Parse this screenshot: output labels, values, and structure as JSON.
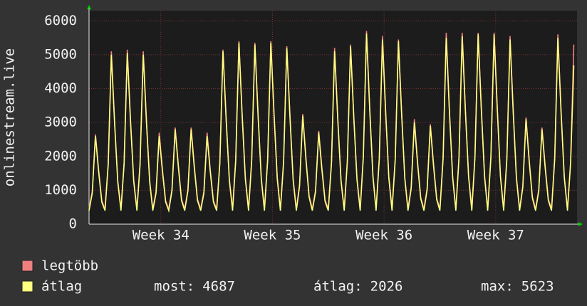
{
  "chart_data": {
    "type": "line",
    "y_label": "onlinestream.live",
    "xlim": [
      0,
      30.6
    ],
    "xticks": [
      {
        "value": 4.5,
        "label": "Week 34"
      },
      {
        "value": 11.5,
        "label": "Week 35"
      },
      {
        "value": 18.5,
        "label": "Week 36"
      },
      {
        "value": 25.5,
        "label": "Week 37"
      }
    ],
    "ylim": [
      0,
      6300
    ],
    "yticks": [
      0,
      1000,
      2000,
      3000,
      4000,
      5000,
      6000
    ],
    "grid": true,
    "x": [
      0,
      0.2,
      0.4,
      0.6,
      0.8,
      1,
      1.2,
      1.4,
      1.6,
      1.8,
      2,
      2.2,
      2.4,
      2.6,
      2.8,
      3,
      3.2,
      3.4,
      3.6,
      3.8,
      4,
      4.2,
      4.4,
      4.6,
      4.8,
      5,
      5.2,
      5.4,
      5.6,
      5.8,
      6,
      6.2,
      6.4,
      6.6,
      6.8,
      7,
      7.2,
      7.4,
      7.6,
      7.8,
      8,
      8.2,
      8.4,
      8.6,
      8.8,
      9,
      9.2,
      9.4,
      9.6,
      9.8,
      10,
      10.2,
      10.4,
      10.6,
      10.8,
      11,
      11.2,
      11.4,
      11.6,
      11.8,
      12,
      12.2,
      12.4,
      12.6,
      12.8,
      13,
      13.2,
      13.4,
      13.6,
      13.8,
      14,
      14.2,
      14.4,
      14.6,
      14.8,
      15,
      15.2,
      15.4,
      15.6,
      15.8,
      16,
      16.2,
      16.4,
      16.6,
      16.8,
      17,
      17.2,
      17.4,
      17.6,
      17.8,
      18,
      18.2,
      18.4,
      18.6,
      18.8,
      19,
      19.2,
      19.4,
      19.6,
      19.8,
      20,
      20.2,
      20.4,
      20.6,
      20.8,
      21,
      21.2,
      21.4,
      21.6,
      21.8,
      22,
      22.2,
      22.4,
      22.6,
      22.8,
      23,
      23.2,
      23.4,
      23.6,
      23.8,
      24,
      24.2,
      24.4,
      24.6,
      24.8,
      25,
      25.2,
      25.4,
      25.6,
      25.8,
      26,
      26.2,
      26.4,
      26.6,
      26.8,
      27,
      27.2,
      27.4,
      27.6,
      27.8,
      28,
      28.2,
      28.4,
      28.6,
      28.8,
      29,
      29.2,
      29.4,
      29.6,
      29.8,
      30,
      30.2,
      30.4
    ],
    "series": [
      {
        "name": "legtöbb",
        "color": "#f08080",
        "values": [
          450,
          960,
          2650,
          1620,
          690,
          450,
          1800,
          5100,
          3060,
          1290,
          450,
          1818,
          5150,
          3090,
          1303,
          450,
          1800,
          5100,
          3060,
          1290,
          450,
          960,
          2700,
          1620,
          690,
          450,
          1030,
          2850,
          1740,
          740,
          450,
          1030,
          2850,
          1740,
          740,
          450,
          960,
          2700,
          1620,
          690,
          450,
          1835,
          5150,
          3120,
          1315,
          450,
          1923,
          5400,
          3270,
          1378,
          450,
          1905,
          5350,
          3240,
          1365,
          450,
          1923,
          5400,
          3270,
          1378,
          450,
          1870,
          5250,
          3180,
          1340,
          450,
          1170,
          3250,
          1980,
          840,
          450,
          995,
          2750,
          1680,
          715,
          450,
          1835,
          5200,
          3120,
          1315,
          450,
          1888,
          5300,
          3210,
          1353,
          450,
          2018,
          5700,
          3434,
          1446,
          450,
          1958,
          5550,
          3330,
          1403,
          450,
          1940,
          5450,
          3300,
          1390,
          450,
          1100,
          3100,
          1860,
          790,
          450,
          1065,
          2950,
          1800,
          765,
          450,
          1975,
          5650,
          3360,
          1415,
          450,
          1993,
          5650,
          3390,
          1428,
          450,
          2010,
          5650,
          3420,
          1440,
          450,
          2010,
          5650,
          3420,
          1440,
          450,
          1958,
          5550,
          3330,
          1403,
          450,
          1135,
          3150,
          1920,
          815,
          450,
          1030,
          2850,
          1740,
          740,
          450,
          1975,
          5600,
          3360,
          1415,
          450,
          1850,
          5300
        ]
      },
      {
        "name": "átlag",
        "color": "#ffff80",
        "values": [
          400,
          910,
          2600,
          1560,
          650,
          400,
          1750,
          5000,
          3000,
          1250,
          400,
          1768,
          5050,
          3030,
          1263,
          400,
          1750,
          5000,
          3000,
          1250,
          400,
          910,
          2600,
          1560,
          650,
          400,
          980,
          2800,
          1680,
          700,
          400,
          980,
          2800,
          1680,
          700,
          400,
          910,
          2600,
          1560,
          650,
          400,
          1785,
          5100,
          3060,
          1275,
          400,
          1873,
          5350,
          3210,
          1338,
          400,
          1855,
          5300,
          3180,
          1325,
          400,
          1873,
          5350,
          3210,
          1338,
          400,
          1820,
          5200,
          3120,
          1300,
          400,
          1120,
          3200,
          1920,
          800,
          400,
          945,
          2700,
          1620,
          675,
          400,
          1785,
          5100,
          3060,
          1275,
          400,
          1838,
          5250,
          3150,
          1313,
          400,
          1968,
          5623,
          3374,
          1406,
          400,
          1908,
          5450,
          3270,
          1363,
          400,
          1890,
          5400,
          3240,
          1350,
          400,
          1050,
          3000,
          1800,
          750,
          400,
          1015,
          2900,
          1740,
          725,
          400,
          1925,
          5500,
          3300,
          1375,
          400,
          1943,
          5550,
          3330,
          1388,
          400,
          1960,
          5600,
          3360,
          1400,
          400,
          1960,
          5600,
          3360,
          1400,
          400,
          1908,
          5450,
          3270,
          1363,
          400,
          1085,
          3100,
          1860,
          775,
          400,
          980,
          2800,
          1680,
          700,
          400,
          1925,
          5500,
          3300,
          1375,
          400,
          1800,
          4687
        ]
      }
    ],
    "stats": [
      {
        "label": "most:",
        "value": 4687
      },
      {
        "label": "átlag:",
        "value": 2026
      },
      {
        "label": "max:",
        "value": 5623
      }
    ]
  }
}
